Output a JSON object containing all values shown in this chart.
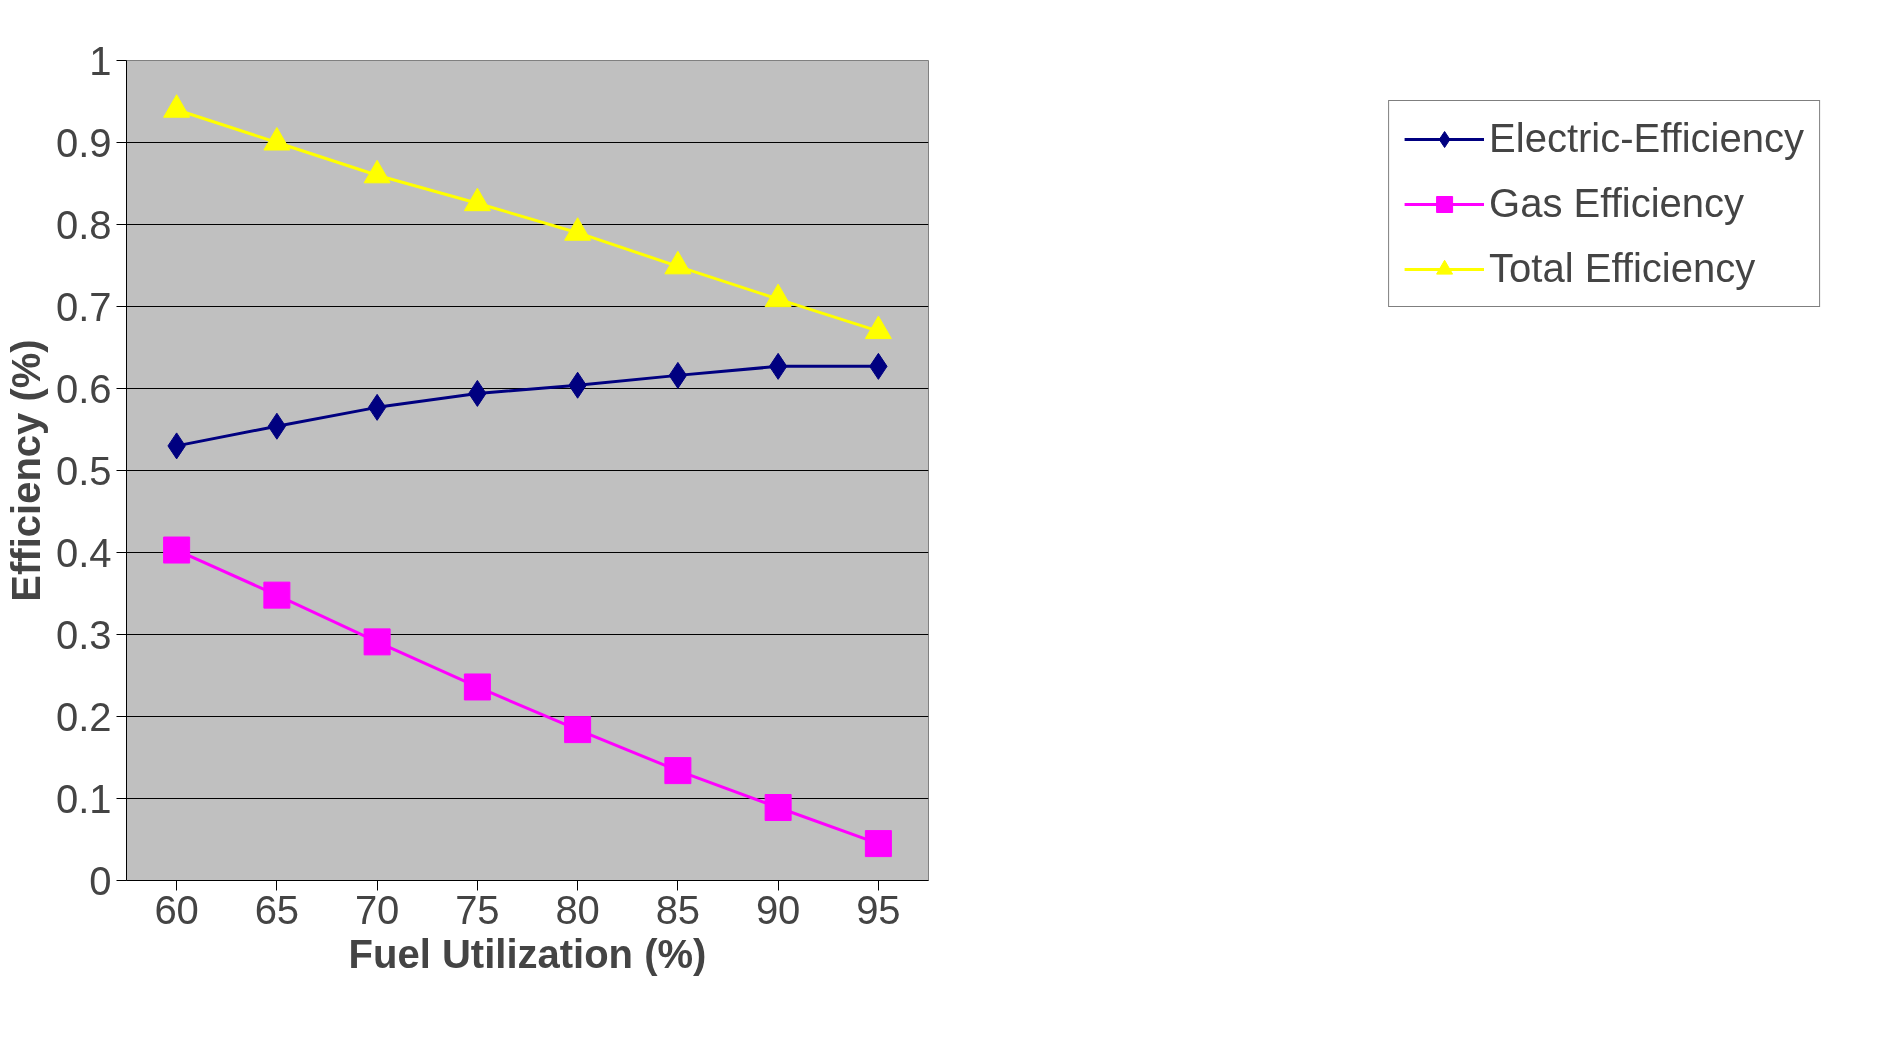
{
  "chart_data": {
    "type": "line",
    "xlabel": "Fuel Utilization (%)",
    "ylabel": "Efficiency (%)",
    "categories": [
      "60",
      "65",
      "70",
      "75",
      "80",
      "85",
      "90",
      "95"
    ],
    "series": [
      {
        "name": "Electric-Efficiency",
        "color": "#000080",
        "marker": "diamond",
        "values": [
          0.53,
          0.554,
          0.577,
          0.594,
          0.604,
          0.616,
          0.627,
          0.627
        ]
      },
      {
        "name": "Gas Efficiency",
        "color": "#ff00ff",
        "marker": "square",
        "values": [
          0.403,
          0.348,
          0.291,
          0.236,
          0.184,
          0.134,
          0.089,
          0.045
        ]
      },
      {
        "name": "Total Efficiency",
        "color": "#ffff00",
        "marker": "triangle",
        "values": [
          0.94,
          0.9,
          0.86,
          0.826,
          0.79,
          0.749,
          0.709,
          0.67
        ]
      }
    ],
    "ylim": [
      0,
      1
    ],
    "yticks": [
      0,
      0.1,
      0.2,
      0.3,
      0.4,
      0.5,
      0.6,
      0.7,
      0.8,
      0.9,
      1
    ],
    "grid": "y",
    "legend": "right"
  }
}
